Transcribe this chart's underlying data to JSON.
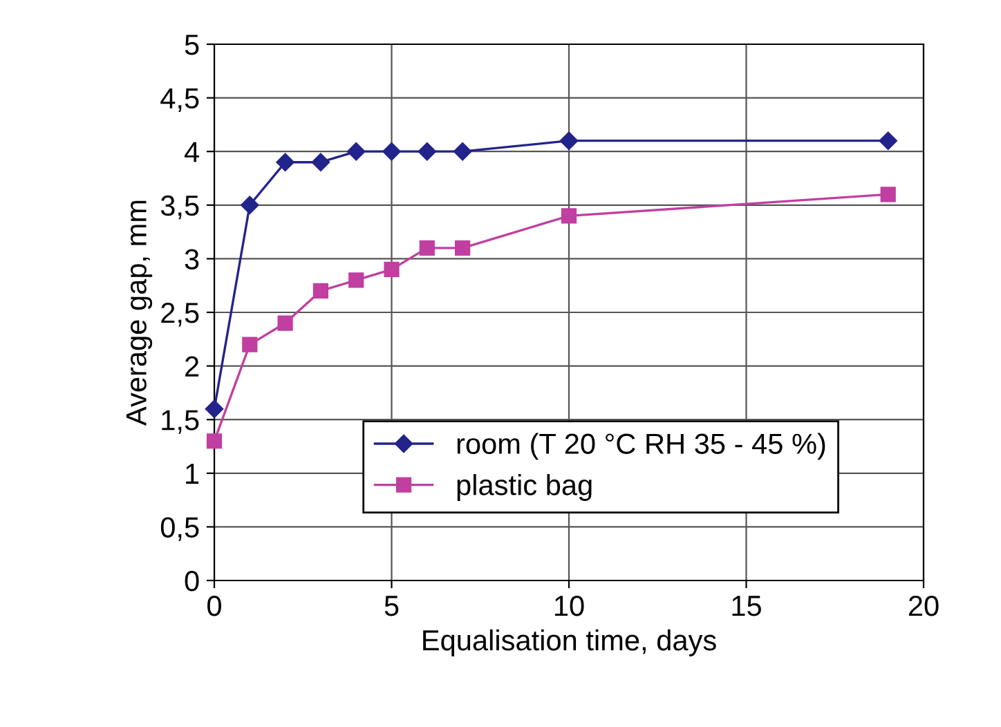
{
  "chart_data": {
    "type": "line",
    "xlabel": "Equalisation time, days",
    "ylabel": "Average gap, mm",
    "series": [
      {
        "name": "room (T 20 °C RH 35 - 45 %)",
        "color": "#23238c",
        "marker": "diamond",
        "x": [
          0,
          1,
          2,
          3,
          4,
          5,
          6,
          7,
          10,
          19
        ],
        "values": [
          1.6,
          3.5,
          3.9,
          3.9,
          4.0,
          4.0,
          4.0,
          4.0,
          4.1,
          4.1
        ]
      },
      {
        "name": "plastic bag",
        "color": "#c03fa0",
        "marker": "square",
        "x": [
          0,
          1,
          2,
          3,
          4,
          5,
          6,
          7,
          10,
          19
        ],
        "values": [
          1.3,
          2.2,
          2.4,
          2.7,
          2.8,
          2.9,
          3.1,
          3.1,
          3.4,
          3.6
        ]
      }
    ],
    "xlim": [
      0,
      20
    ],
    "xticks": [
      0,
      5,
      10,
      15,
      20
    ],
    "ylim": [
      0,
      5
    ],
    "yticks": [
      0,
      {
        "value": 0.5,
        "label": "0,5"
      },
      1,
      {
        "value": 1.5,
        "label": "1,5"
      },
      2,
      {
        "value": 2.5,
        "label": "2,5"
      },
      3,
      {
        "value": 3.5,
        "label": "3,5"
      },
      4,
      {
        "value": 4.5,
        "label": "4,5"
      },
      5
    ],
    "grid": true,
    "legend": "bottom right",
    "line_style": "solid"
  }
}
